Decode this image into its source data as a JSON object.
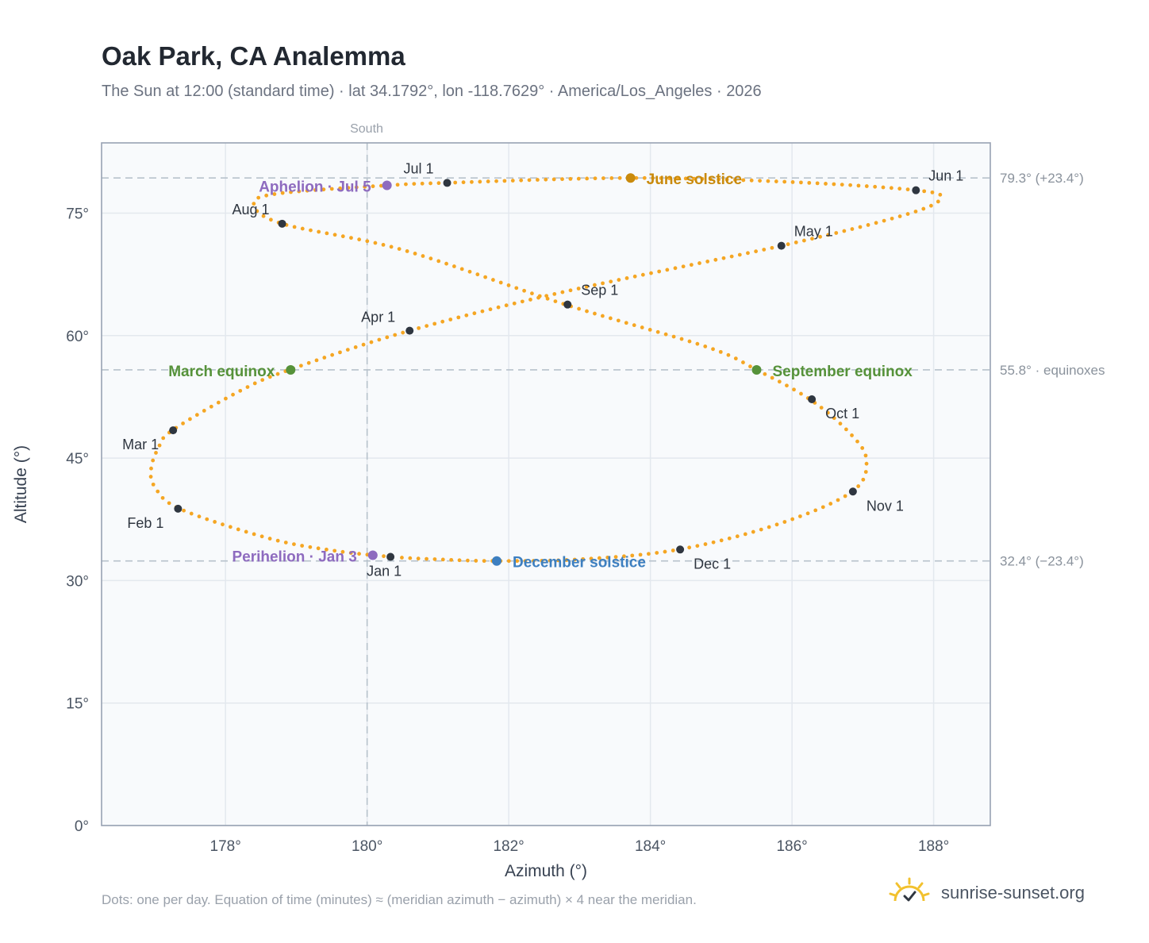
{
  "header": {
    "title": "Oak Park, CA Analemma",
    "subtitle": "The Sun at 12:00 (standard time) · lat 34.1792°, lon -118.7629° · America/Los_Angeles · 2026"
  },
  "footer": {
    "note": "Dots: one per day. Equation of time (minutes) ≈ (meridian azimuth − azimuth) × 4 near the meridian.",
    "brand": "sunrise-sunset.org",
    "brand_icon": "sun-check-icon"
  },
  "colors": {
    "path": "#f5a623",
    "month_marker": "#2f3640",
    "aphelion": "#8e6bbf",
    "june_solstice": "#c98a0c",
    "equinox": "#56923a",
    "december_solstice": "#3d7fc0",
    "reference_line": "#b7c2cc",
    "plot_bg": "#f8fafc",
    "grid": "#e3e8ee"
  },
  "chart_data": {
    "type": "scatter",
    "title": "Oak Park, CA Analemma",
    "xlabel": "Azimuth (°)",
    "ylabel": "Altitude (°)",
    "xlim": [
      176.25,
      188.8
    ],
    "ylim": [
      0,
      83.6
    ],
    "xticks": [
      178,
      180,
      182,
      184,
      186,
      188
    ],
    "yticks": [
      0,
      15,
      30,
      45,
      60,
      75
    ],
    "tick_suffix": "°",
    "grid": true,
    "meridian": {
      "azimuth": 180,
      "label": "South"
    },
    "reference_lines": [
      {
        "altitude": 79.3,
        "label": "79.3° (+23.4°)"
      },
      {
        "altitude": 55.8,
        "label": "55.8° · equinoxes"
      },
      {
        "altitude": 32.4,
        "label": "32.4° (−23.4°)"
      }
    ],
    "path_key_points": [
      {
        "az": 180.35,
        "alt": 32.9
      },
      {
        "az": 179.5,
        "alt": 33.7
      },
      {
        "az": 178.6,
        "alt": 35.2
      },
      {
        "az": 177.35,
        "alt": 38.8
      },
      {
        "az": 177.0,
        "alt": 41.5
      },
      {
        "az": 176.95,
        "alt": 43.7
      },
      {
        "az": 177.05,
        "alt": 46.2
      },
      {
        "az": 177.25,
        "alt": 48.4
      },
      {
        "az": 178.2,
        "alt": 53.2
      },
      {
        "az": 178.9,
        "alt": 55.8
      },
      {
        "az": 180.6,
        "alt": 60.6
      },
      {
        "az": 182.8,
        "alt": 65.4
      },
      {
        "az": 185.85,
        "alt": 71.0
      },
      {
        "az": 187.6,
        "alt": 74.8
      },
      {
        "az": 188.1,
        "alt": 76.8
      },
      {
        "az": 187.75,
        "alt": 77.8
      },
      {
        "az": 186.0,
        "alt": 78.8
      },
      {
        "az": 183.7,
        "alt": 79.3
      },
      {
        "az": 181.1,
        "alt": 78.7
      },
      {
        "az": 180.3,
        "alt": 78.4
      },
      {
        "az": 178.75,
        "alt": 77.4
      },
      {
        "az": 178.4,
        "alt": 76.1
      },
      {
        "az": 178.8,
        "alt": 73.7
      },
      {
        "az": 180.5,
        "alt": 70.5
      },
      {
        "az": 182.8,
        "alt": 63.8
      },
      {
        "az": 184.8,
        "alt": 58.6
      },
      {
        "az": 185.5,
        "alt": 55.8
      },
      {
        "az": 186.25,
        "alt": 52.2
      },
      {
        "az": 186.8,
        "alt": 48.2
      },
      {
        "az": 187.05,
        "alt": 44.8
      },
      {
        "az": 186.85,
        "alt": 40.9
      },
      {
        "az": 185.8,
        "alt": 36.9
      },
      {
        "az": 184.4,
        "alt": 33.8
      },
      {
        "az": 183.0,
        "alt": 32.6
      },
      {
        "az": 181.8,
        "alt": 32.4
      },
      {
        "az": 181.0,
        "alt": 32.6
      },
      {
        "az": 180.35,
        "alt": 32.9
      }
    ],
    "month_markers": [
      {
        "label": "Jan 1",
        "az": 180.33,
        "alt": 32.9,
        "anchor": "end",
        "dx": 14,
        "dy": 24
      },
      {
        "label": "Feb 1",
        "az": 177.33,
        "alt": 38.8,
        "anchor": "end",
        "dx": -18,
        "dy": 24
      },
      {
        "label": "Mar 1",
        "az": 177.26,
        "alt": 48.4,
        "anchor": "end",
        "dx": -18,
        "dy": 24
      },
      {
        "label": "Apr 1",
        "az": 180.6,
        "alt": 60.6,
        "anchor": "end",
        "dx": -18,
        "dy": -11
      },
      {
        "label": "May 1",
        "az": 185.85,
        "alt": 71.0,
        "anchor": "start",
        "dx": 16,
        "dy": -12
      },
      {
        "label": "Jun 1",
        "az": 187.75,
        "alt": 77.8,
        "anchor": "start",
        "dx": 16,
        "dy": -12
      },
      {
        "label": "Jul 1",
        "az": 181.13,
        "alt": 78.7,
        "anchor": "end",
        "dx": -17,
        "dy": -12
      },
      {
        "label": "Aug 1",
        "az": 178.8,
        "alt": 73.7,
        "anchor": "end",
        "dx": -16,
        "dy": -12
      },
      {
        "label": "Sep 1",
        "az": 182.83,
        "alt": 63.8,
        "anchor": "start",
        "dx": 17,
        "dy": -12
      },
      {
        "label": "Oct 1",
        "az": 186.28,
        "alt": 52.2,
        "anchor": "start",
        "dx": 17,
        "dy": 24
      },
      {
        "label": "Nov 1",
        "az": 186.86,
        "alt": 40.9,
        "anchor": "start",
        "dx": 17,
        "dy": 24
      },
      {
        "label": "Dec 1",
        "az": 184.42,
        "alt": 33.8,
        "anchor": "start",
        "dx": 17,
        "dy": 24
      }
    ],
    "events": [
      {
        "label": "Aphelion · Jul 5",
        "az": 180.28,
        "alt": 78.4,
        "color_key": "aphelion",
        "anchor": "end",
        "dx": -20,
        "dy": 8
      },
      {
        "label": "June solstice",
        "az": 183.72,
        "alt": 79.3,
        "color_key": "june_solstice",
        "anchor": "start",
        "dx": 20,
        "dy": 8
      },
      {
        "label": "March equinox",
        "az": 178.92,
        "alt": 55.8,
        "color_key": "equinox",
        "anchor": "end",
        "dx": -20,
        "dy": 8
      },
      {
        "label": "September equinox",
        "az": 185.5,
        "alt": 55.8,
        "color_key": "equinox",
        "anchor": "start",
        "dx": 20,
        "dy": 8
      },
      {
        "label": "Perihelion · Jan 3",
        "az": 180.08,
        "alt": 33.1,
        "color_key": "aphelion",
        "anchor": "end",
        "dx": -20,
        "dy": 8
      },
      {
        "label": "December solstice",
        "az": 181.83,
        "alt": 32.4,
        "color_key": "december_solstice",
        "anchor": "start",
        "dx": 20,
        "dy": 8
      }
    ]
  }
}
